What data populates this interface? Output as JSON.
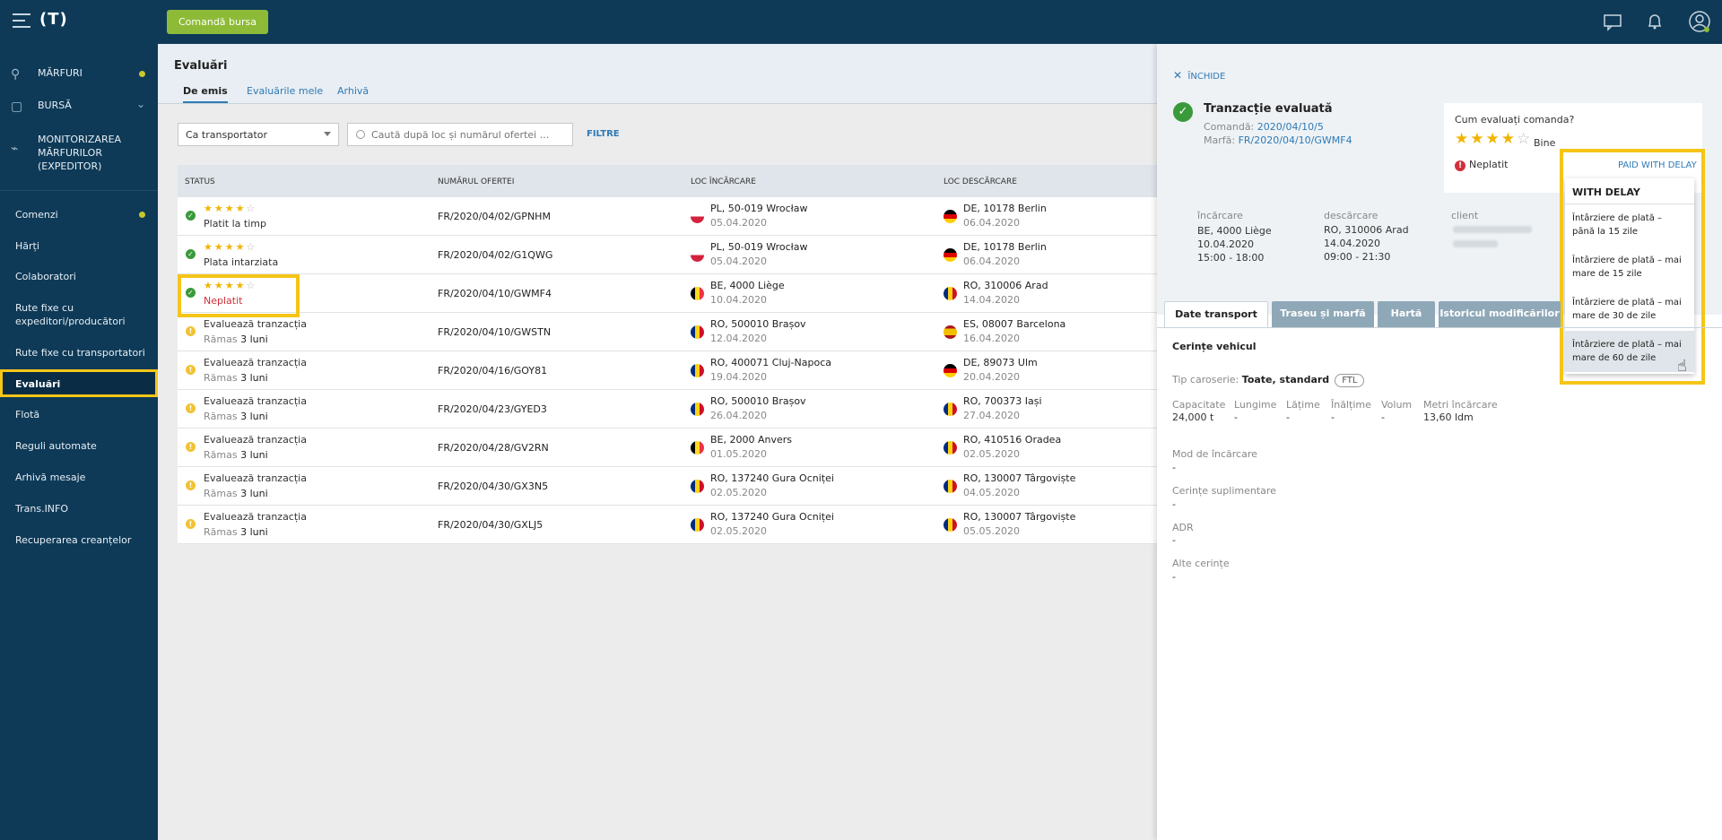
{
  "topbar": {
    "logo": "(T)",
    "command_button": "Comandă bursa"
  },
  "sidebar": {
    "items": [
      {
        "label": "MĂRFURI",
        "icon": "goods-icon"
      },
      {
        "label": "BURSĂ",
        "icon": "box-icon"
      },
      {
        "label": "MONITORIZAREA MĂRFURILOR (EXPEDITOR)",
        "icon": "satellite-icon"
      },
      {
        "label": "Comenzi"
      },
      {
        "label": "Hărți"
      },
      {
        "label": "Colaboratori"
      },
      {
        "label": "Rute fixe cu expeditori/producători"
      },
      {
        "label": "Rute fixe cu transportatori"
      },
      {
        "label": "Evaluări"
      },
      {
        "label": "Flotă"
      },
      {
        "label": "Reguli automate"
      },
      {
        "label": "Arhivă mesaje"
      },
      {
        "label": "Trans.INFO"
      },
      {
        "label": "Recuperarea creanțelor"
      }
    ]
  },
  "main": {
    "title": "Evaluări",
    "tabs": [
      "De emis",
      "Evaluările mele",
      "Arhivă"
    ],
    "role_select": "Ca transportator",
    "search_placeholder": "Caută după loc și numărul ofertei ...",
    "filter_label": "FILTRE",
    "columns": [
      "STATUS",
      "NUMĂRUL OFERTEI",
      "LOC ÎNCĂRCARE",
      "LOC DESCĂRCARE"
    ],
    "rows": [
      {
        "status_type": "rated",
        "status": "Platit la timp",
        "offer": "FR/2020/04/02/GPNHM",
        "load_place": "PL, 50-019 Wrocław",
        "load_date": "05.04.2020",
        "load_flag": "PL",
        "unload_place": "DE, 10178 Berlin",
        "unload_date": "06.04.2020",
        "unload_flag": "DE"
      },
      {
        "status_type": "rated",
        "status": "Plata intarziata",
        "offer": "FR/2020/04/02/G1QWG",
        "load_place": "PL, 50-019 Wrocław",
        "load_date": "05.04.2020",
        "load_flag": "PL",
        "unload_place": "DE, 10178 Berlin",
        "unload_date": "06.04.2020",
        "unload_flag": "DE"
      },
      {
        "status_type": "unpaid",
        "status": "Neplatit",
        "offer": "FR/2020/04/10/GWMF4",
        "load_place": "BE, 4000 Liège",
        "load_date": "10.04.2020",
        "load_flag": "BE",
        "unload_place": "RO, 310006 Arad",
        "unload_date": "14.04.2020",
        "unload_flag": "RO"
      },
      {
        "status_type": "pending",
        "status": "Evaluează tranzacția",
        "remaining_prefix": "Rămas",
        "remaining": "3 luni",
        "offer": "FR/2020/04/10/GWSTN",
        "load_place": "RO, 500010 Brașov",
        "load_date": "12.04.2020",
        "load_flag": "RO",
        "unload_place": "ES, 08007 Barcelona",
        "unload_date": "16.04.2020",
        "unload_flag": "ES"
      },
      {
        "status_type": "pending",
        "status": "Evaluează tranzacția",
        "remaining_prefix": "Rămas",
        "remaining": "3 luni",
        "offer": "FR/2020/04/16/GOY81",
        "load_place": "RO, 400071 Cluj-Napoca",
        "load_date": "19.04.2020",
        "load_flag": "RO",
        "unload_place": "DE, 89073 Ulm",
        "unload_date": "20.04.2020",
        "unload_flag": "DE"
      },
      {
        "status_type": "pending",
        "status": "Evaluează tranzacția",
        "remaining_prefix": "Rămas",
        "remaining": "3 luni",
        "offer": "FR/2020/04/23/GYED3",
        "load_place": "RO, 500010 Brașov",
        "load_date": "26.04.2020",
        "load_flag": "RO",
        "unload_place": "RO, 700373 Iași",
        "unload_date": "27.04.2020",
        "unload_flag": "RO"
      },
      {
        "status_type": "pending",
        "status": "Evaluează tranzacția",
        "remaining_prefix": "Rămas",
        "remaining": "3 luni",
        "offer": "FR/2020/04/28/GV2RN",
        "load_place": "BE, 2000 Anvers",
        "load_date": "01.05.2020",
        "load_flag": "BE",
        "unload_place": "RO, 410516 Oradea",
        "unload_date": "02.05.2020",
        "unload_flag": "RO"
      },
      {
        "status_type": "pending",
        "status": "Evaluează tranzacția",
        "remaining_prefix": "Rămas",
        "remaining": "3 luni",
        "offer": "FR/2020/04/30/GX3N5",
        "load_place": "RO, 137240 Gura Ocniței",
        "load_date": "02.05.2020",
        "load_flag": "RO",
        "unload_place": "RO, 130007 Târgoviște",
        "unload_date": "04.05.2020",
        "unload_flag": "RO"
      },
      {
        "status_type": "pending",
        "status": "Evaluează tranzacția",
        "remaining_prefix": "Rămas",
        "remaining": "3 luni",
        "offer": "FR/2020/04/30/GXLJ5",
        "load_place": "RO, 137240 Gura Ocniței",
        "load_date": "02.05.2020",
        "load_flag": "RO",
        "unload_place": "RO, 130007 Târgoviște",
        "unload_date": "05.05.2020",
        "unload_flag": "RO"
      }
    ]
  },
  "panel": {
    "close_label": "ÎNCHIDE",
    "title": "Tranzacție evaluată",
    "order_label": "Comandă:",
    "order_value": "2020/04/10/5",
    "cargo_label": "Marfă:",
    "cargo_value": "FR/2020/04/10/GWMF4",
    "rating": {
      "question": "Cum evaluați comanda?",
      "stars": 4,
      "max": 5,
      "verdict": "Bine",
      "payment_status": "Neplatit"
    },
    "paid_link": "PAID WITH DELAY",
    "dropdown": {
      "header": "WITH DELAY",
      "options": [
        "Întârziere de plată – până la 15 zile",
        "Întârziere de plată – mai mare de 15 zile",
        "Întârziere de plată – mai mare de 30 de zile",
        "Întârziere de plată – mai mare de 60 de zile"
      ],
      "hovered_index": 3
    },
    "details": {
      "load_label": "încărcare",
      "load_place": "BE, 4000 Liège",
      "load_date": "10.04.2020",
      "load_time": "15:00 - 18:00",
      "unload_label": "descărcare",
      "unload_place": "RO, 310006 Arad",
      "unload_date": "14.04.2020",
      "unload_time": "09:00 - 21:30",
      "client_label": "client"
    },
    "tabs": [
      "Date transport",
      "Traseu și marfă",
      "Hartă",
      "Istoricul modificărilor"
    ],
    "vehicle": {
      "section_title": "Cerințe vehicul",
      "body_label": "Tip caroserie:",
      "body_value": "Toate, standard",
      "ftl": "FTL",
      "specs": [
        {
          "label": "Capacitate",
          "value": "24,000 t"
        },
        {
          "label": "Lungime",
          "value": "-"
        },
        {
          "label": "Lățime",
          "value": "-"
        },
        {
          "label": "Înălțime",
          "value": "-"
        },
        {
          "label": "Volum",
          "value": "-"
        },
        {
          "label": "Metri încărcare",
          "value": "13,60 ldm"
        }
      ],
      "extra": [
        {
          "label": "Mod de încărcare",
          "value": "-"
        },
        {
          "label": "Cerințe suplimentare",
          "value": "-"
        },
        {
          "label": "ADR",
          "value": "-"
        },
        {
          "label": "Alte cerințe",
          "value": "-"
        }
      ]
    }
  },
  "colors": {
    "navy": "#0e3a58",
    "accent_green": "#8dbb37",
    "link": "#2f7ab5",
    "highlight": "#f5c518",
    "star": "#f0b400",
    "error": "#d0303a"
  }
}
